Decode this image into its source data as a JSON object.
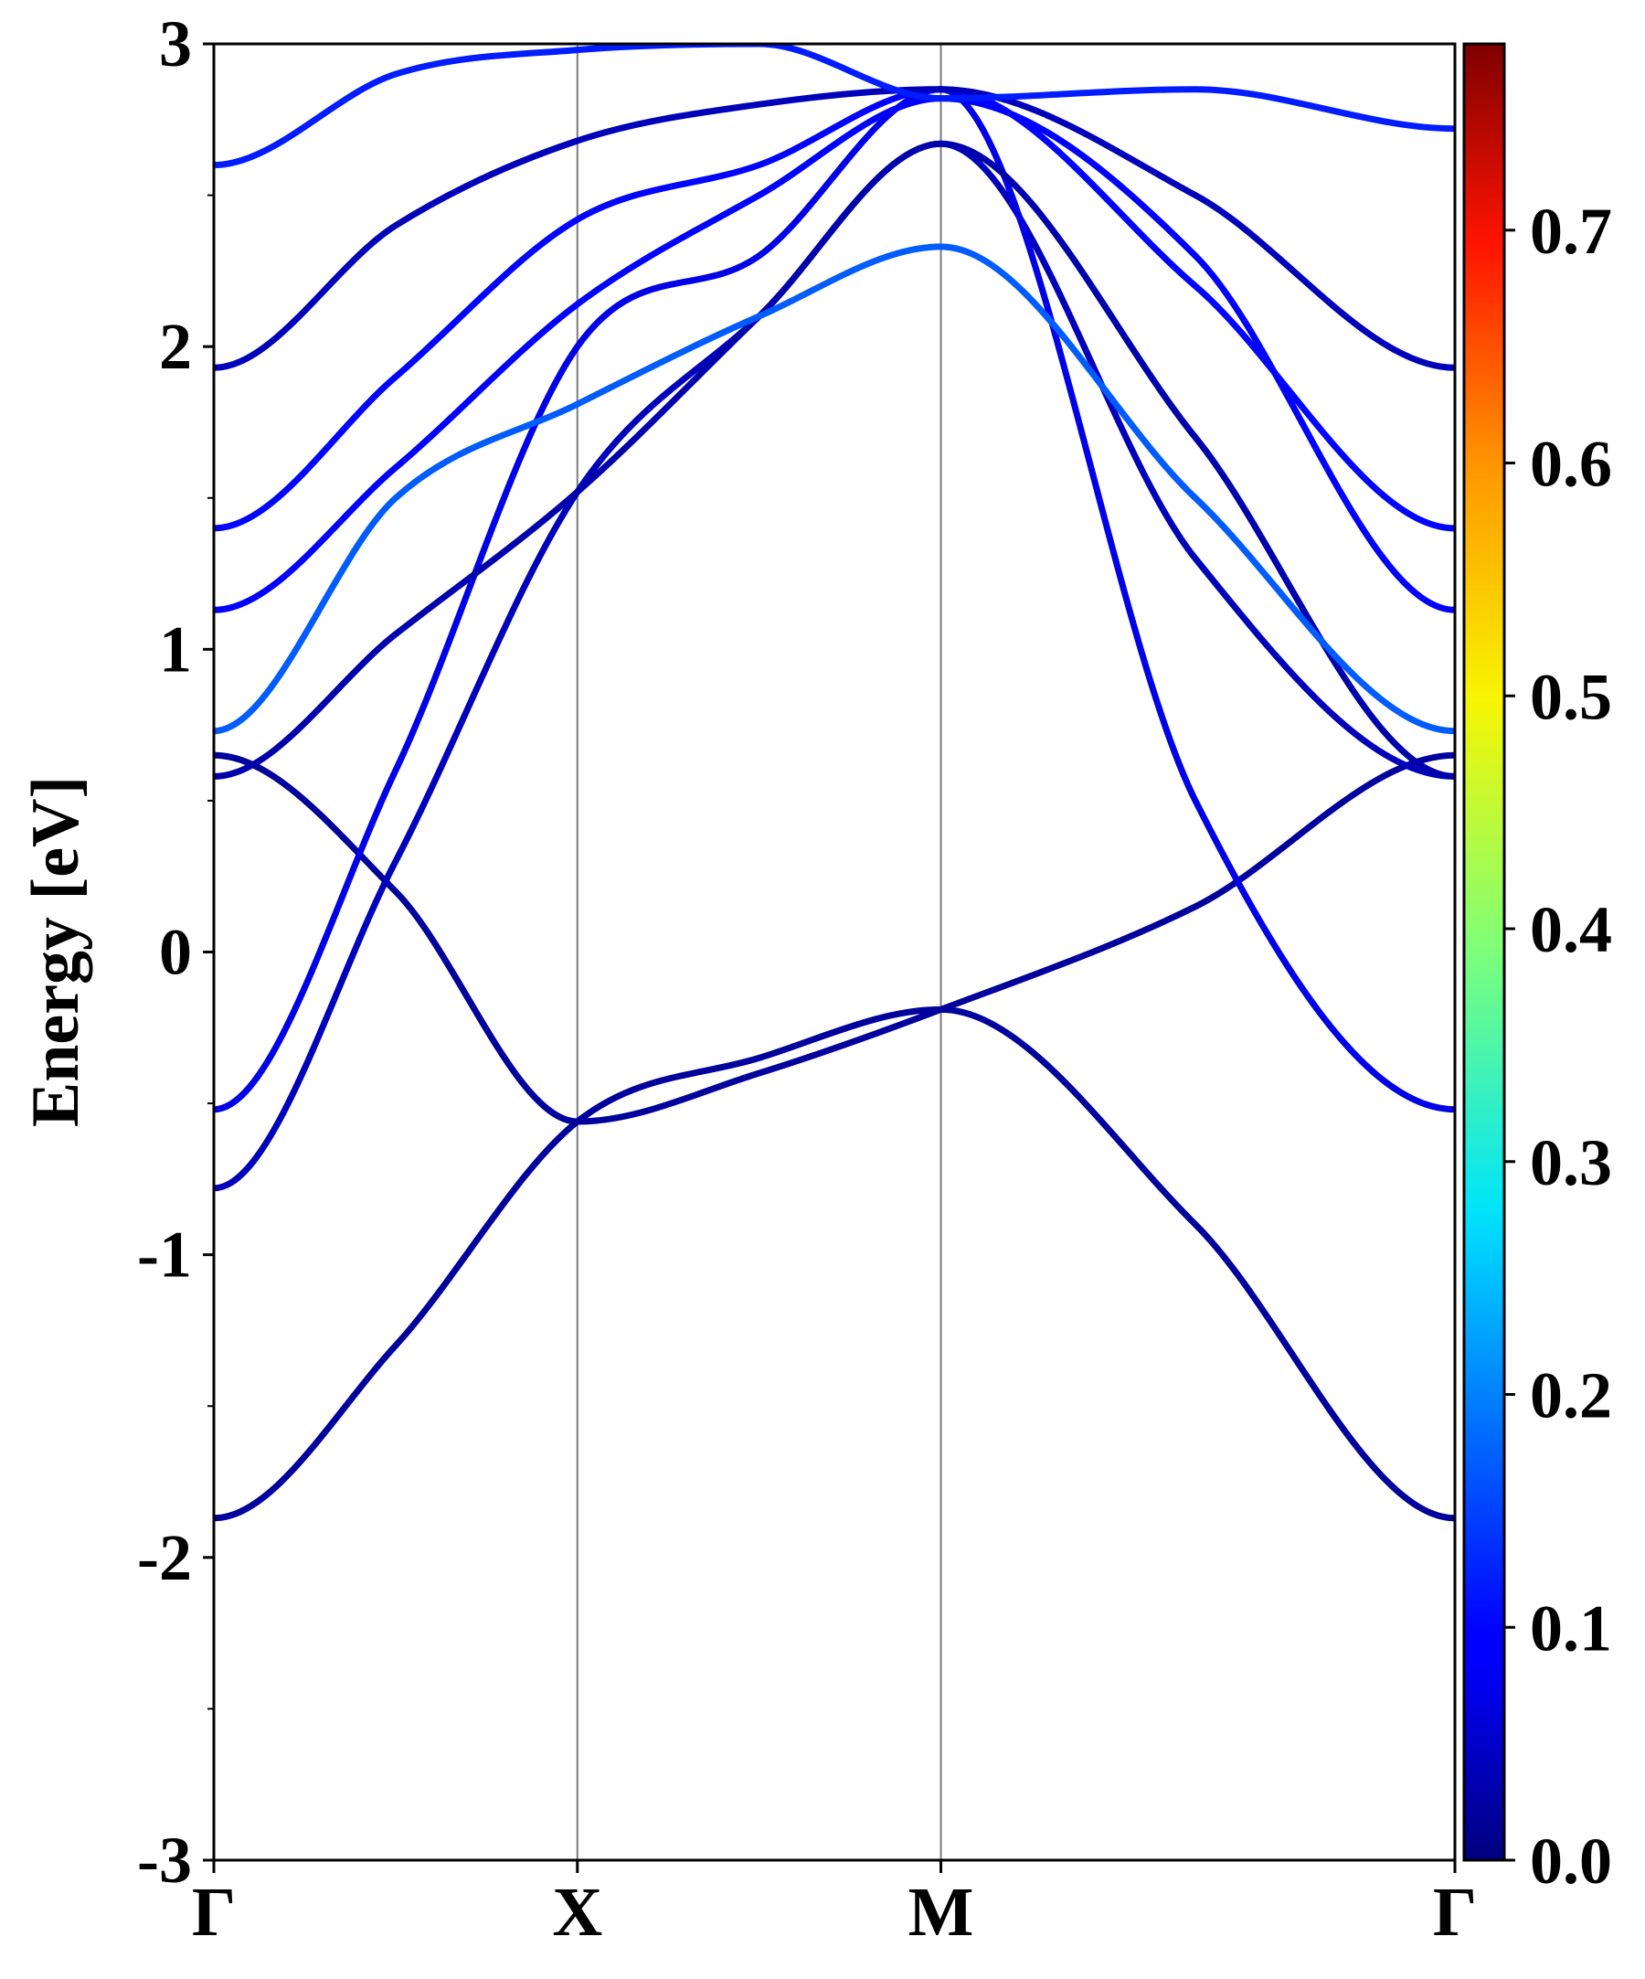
{
  "chart_data": {
    "type": "line",
    "ylabel": "Energy [eV]",
    "xlabel": "",
    "ylim": [
      -3,
      3
    ],
    "yticks": [
      "-3",
      "-2",
      "-1",
      "0",
      "1",
      "2",
      "3"
    ],
    "x_tick_labels": [
      "Γ",
      "X",
      "M",
      "Γ"
    ],
    "k_path_positions": [
      0,
      1,
      2,
      3.414
    ],
    "grid": false,
    "vertical_lines_at_high_symmetry_points": true,
    "colormap": "jet",
    "colorbar": {
      "range": [
        0.0,
        0.78
      ],
      "ticks": [
        "0.0",
        "0.1",
        "0.2",
        "0.3",
        "0.4",
        "0.5",
        "0.6",
        "0.7"
      ],
      "tick_values": [
        0.0,
        0.1,
        0.2,
        0.3,
        0.4,
        0.5,
        0.6,
        0.7
      ]
    },
    "series": [
      {
        "k": [
          0,
          0.5,
          1,
          1.5,
          2,
          2.7,
          3.414
        ],
        "values": [
          -1.87,
          -1.3,
          -0.56,
          -0.35,
          -0.19,
          -0.9,
          -1.87
        ],
        "weight": 0.02
      },
      {
        "k": [
          0,
          0.5,
          1,
          1.5,
          2,
          2.7,
          3.414
        ],
        "values": [
          0.65,
          0.2,
          -0.56,
          -0.4,
          -0.19,
          0.15,
          0.65
        ],
        "weight": 0.02
      },
      {
        "k": [
          0,
          0.5,
          1,
          1.5,
          2,
          2.7,
          3.414
        ],
        "values": [
          -0.78,
          0.3,
          1.52,
          2.1,
          2.67,
          1.3,
          0.58
        ],
        "weight": 0.04
      },
      {
        "k": [
          0,
          0.5,
          1,
          1.5,
          2,
          2.7,
          3.414
        ],
        "values": [
          -0.52,
          0.6,
          2.0,
          2.3,
          2.85,
          0.5,
          -0.52
        ],
        "weight": 0.07
      },
      {
        "k": [
          0,
          0.5,
          1,
          1.5,
          2,
          2.7,
          3.414
        ],
        "values": [
          0.58,
          1.05,
          1.52,
          2.1,
          2.67,
          1.7,
          0.58
        ],
        "weight": 0.03
      },
      {
        "k": [
          0,
          0.5,
          1,
          1.5,
          2,
          2.7,
          3.414
        ],
        "values": [
          0.73,
          1.5,
          1.81,
          2.1,
          2.33,
          1.5,
          0.73
        ],
        "weight": 0.17
      },
      {
        "k": [
          0,
          0.5,
          1,
          1.5,
          2,
          2.7,
          3.414
        ],
        "values": [
          1.13,
          1.6,
          2.14,
          2.5,
          2.82,
          2.3,
          1.13
        ],
        "weight": 0.09
      },
      {
        "k": [
          0,
          0.5,
          1,
          1.5,
          2,
          2.7,
          3.414
        ],
        "values": [
          1.4,
          1.9,
          2.42,
          2.6,
          2.85,
          2.2,
          1.4
        ],
        "weight": 0.1
      },
      {
        "k": [
          0,
          0.5,
          1,
          1.5,
          2,
          2.7,
          3.414
        ],
        "values": [
          1.93,
          2.4,
          2.68,
          2.8,
          2.85,
          2.5,
          1.93
        ],
        "weight": 0.04
      },
      {
        "k": [
          0,
          0.5,
          1,
          1.5,
          2,
          2.7,
          3.414
        ],
        "values": [
          2.6,
          2.9,
          2.98,
          3.0,
          2.82,
          2.85,
          2.72
        ],
        "weight": 0.12
      }
    ]
  }
}
